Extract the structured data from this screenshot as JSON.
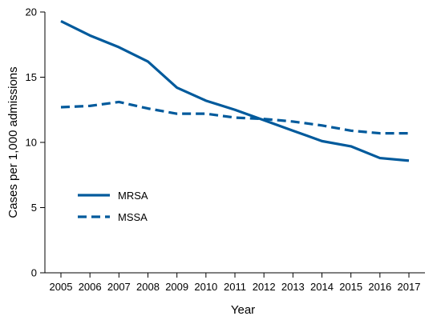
{
  "chart_data": {
    "type": "line",
    "xlabel": "Year",
    "ylabel": "Cases per 1,000 admissions",
    "x": [
      "2005",
      "2006",
      "2007",
      "2008",
      "2009",
      "2010",
      "2011",
      "2012",
      "2013",
      "2014",
      "2015",
      "2016",
      "2017"
    ],
    "ylim": [
      0,
      20
    ],
    "yticks": [
      0,
      5,
      10,
      15,
      20
    ],
    "grid": false,
    "legend_position": "left",
    "series": [
      {
        "name": "MRSA",
        "style": "solid",
        "color": "#005a9c",
        "values": [
          19.3,
          18.2,
          17.3,
          16.2,
          14.2,
          13.2,
          12.5,
          11.7,
          10.9,
          10.1,
          9.7,
          8.8,
          8.6
        ]
      },
      {
        "name": "MSSA",
        "style": "dashed",
        "color": "#005a9c",
        "values": [
          12.7,
          12.8,
          13.1,
          12.6,
          12.2,
          12.2,
          11.9,
          11.8,
          11.6,
          11.3,
          10.9,
          10.7,
          10.7
        ]
      }
    ]
  }
}
